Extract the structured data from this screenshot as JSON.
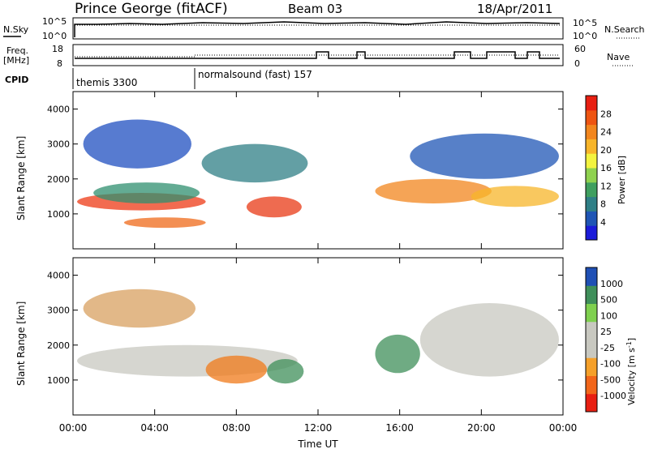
{
  "header": {
    "station": "Prince George (fitACF)",
    "beam": "Beam 03",
    "date": "18/Apr/2011"
  },
  "top_panels": {
    "nsky_label": "N.Sky",
    "nsky_ticks": [
      "10^5",
      "10^0"
    ],
    "nsearch_label": "N.Search",
    "nsearch_ticks": [
      "10^5",
      "10^0"
    ],
    "freq_label": "Freq.",
    "freq_unit": "[MHz]",
    "freq_ticks": [
      "18",
      "8"
    ],
    "nave_label": "Nave",
    "nave_ticks": [
      "60",
      "0"
    ],
    "cpid_label": "CPID",
    "cpid_segments": [
      {
        "label": "themis 3300",
        "start_hour": 0
      },
      {
        "label": "normalsound (fast) 157",
        "start_hour": 6
      }
    ]
  },
  "colorbars": {
    "power": {
      "label": "Power [dB]",
      "ticks": [
        "28",
        "24",
        "20",
        "16",
        "12",
        "8",
        "4"
      ],
      "colors": [
        "#1b1bd9",
        "#1f55b5",
        "#2f7f86",
        "#3f9f5f",
        "#8fd24f",
        "#f3f33f",
        "#f7b52a",
        "#f2861e",
        "#ee5512",
        "#e81f12"
      ]
    },
    "velocity": {
      "label": "Velocity [m s",
      "label_sup": "-1",
      "label_end": "]",
      "ticks": [
        "1000",
        "500",
        "100",
        "25",
        "-25",
        "-100",
        "-500",
        "-1000"
      ],
      "colors": [
        "#e81f12",
        "#f2661a",
        "#f5a02a",
        "#c8c8c0",
        "#c8c8c0",
        "#7fd04f",
        "#3f8f5a",
        "#1f50b5"
      ]
    }
  },
  "chart_data": [
    {
      "type": "heatmap",
      "name": "power",
      "ylabel": "Slant Range [km]",
      "xlim_hours": [
        0,
        24
      ],
      "ylim": [
        0,
        4500
      ],
      "yticks": [
        1000,
        2000,
        3000,
        4000
      ],
      "blobs": [
        {
          "t0": 0.2,
          "t1": 6.5,
          "r0": 1100,
          "r1": 1600,
          "color": "#ee3a16"
        },
        {
          "t0": 1.0,
          "t1": 6.2,
          "r0": 1300,
          "r1": 1900,
          "color": "#2f8f6f"
        },
        {
          "t0": 0.5,
          "t1": 5.8,
          "r0": 2300,
          "r1": 3700,
          "color": "#1f4fc0"
        },
        {
          "t0": 2.5,
          "t1": 6.5,
          "r0": 600,
          "r1": 900,
          "color": "#ef6a1a"
        },
        {
          "t0": 6.3,
          "t1": 11.5,
          "r0": 1900,
          "r1": 3000,
          "color": "#2f7f86"
        },
        {
          "t0": 8.5,
          "t1": 11.2,
          "r0": 900,
          "r1": 1500,
          "color": "#e83a16"
        },
        {
          "t0": 14.8,
          "t1": 20.5,
          "r0": 1300,
          "r1": 2000,
          "color": "#f2861e"
        },
        {
          "t0": 16.5,
          "t1": 23.8,
          "r0": 2000,
          "r1": 3300,
          "color": "#1f55b5"
        },
        {
          "t0": 19.5,
          "t1": 23.8,
          "r0": 1200,
          "r1": 1800,
          "color": "#f7b52a"
        }
      ]
    },
    {
      "type": "heatmap",
      "name": "velocity",
      "ylabel": "Slant Range [km]",
      "xlim_hours": [
        0,
        24
      ],
      "ylim": [
        0,
        4500
      ],
      "yticks": [
        1000,
        2000,
        3000,
        4000
      ],
      "xticks": [
        "00:00",
        "04:00",
        "08:00",
        "12:00",
        "16:00",
        "20:00",
        "00:00"
      ],
      "xlabel": "Time UT",
      "blobs": [
        {
          "t0": 0.2,
          "t1": 11.0,
          "r0": 1100,
          "r1": 2000,
          "color": "#c8c8c0"
        },
        {
          "t0": 0.5,
          "t1": 6.0,
          "r0": 2500,
          "r1": 3600,
          "color": "#d8a060"
        },
        {
          "t0": 6.5,
          "t1": 9.5,
          "r0": 900,
          "r1": 1700,
          "color": "#f07a1a"
        },
        {
          "t0": 9.5,
          "t1": 11.3,
          "r0": 900,
          "r1": 1600,
          "color": "#3f8f5a"
        },
        {
          "t0": 14.8,
          "t1": 17.0,
          "r0": 1200,
          "r1": 2300,
          "color": "#3f8f5a"
        },
        {
          "t0": 17.0,
          "t1": 23.8,
          "r0": 1100,
          "r1": 3200,
          "color": "#c8c8c0"
        }
      ]
    }
  ]
}
